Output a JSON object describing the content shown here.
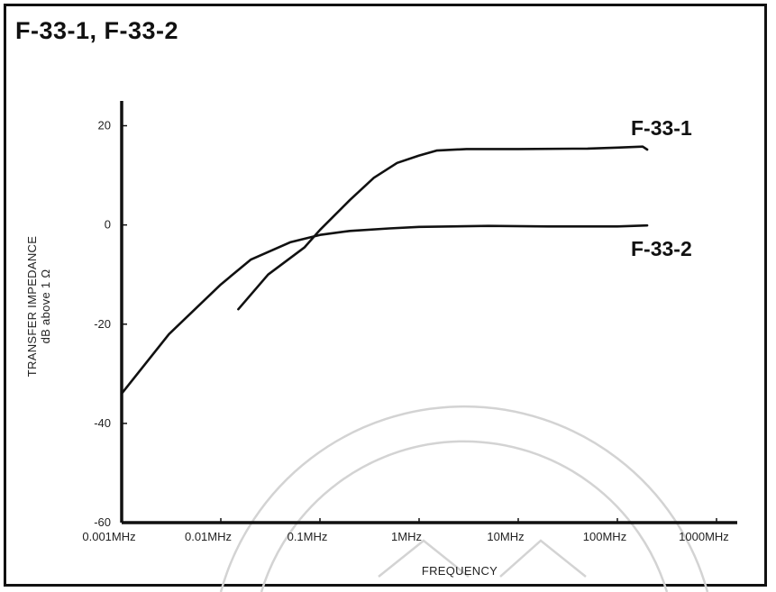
{
  "title": "F-33-1, F-33-2",
  "chart_data": {
    "type": "line",
    "title": "F-33-1, F-33-2",
    "xlabel": "FREQUENCY",
    "ylabel": [
      "TRANSFER IMPEDANCE",
      "dB above 1 Ω"
    ],
    "x_scale": "log",
    "x_unit": "MHz",
    "xlim": [
      0.001,
      1000
    ],
    "ylim": [
      -60,
      25
    ],
    "x_ticks": [
      {
        "value": 0.001,
        "label": "0.001MHz"
      },
      {
        "value": 0.01,
        "label": "0.01MHz"
      },
      {
        "value": 0.1,
        "label": "0.1MHz"
      },
      {
        "value": 1,
        "label": "1MHz"
      },
      {
        "value": 10,
        "label": "10MHz"
      },
      {
        "value": 100,
        "label": "100MHz"
      },
      {
        "value": 1000,
        "label": "1000MHz"
      }
    ],
    "y_ticks": [
      {
        "value": 20,
        "label": "20"
      },
      {
        "value": 0,
        "label": "0"
      },
      {
        "value": -20,
        "label": "-20"
      },
      {
        "value": -40,
        "label": "-40"
      },
      {
        "value": -60,
        "label": "-60"
      }
    ],
    "grid": false,
    "series": [
      {
        "name": "F-33-1",
        "color": "#111111",
        "points": [
          [
            0.015,
            -17
          ],
          [
            0.03,
            -10
          ],
          [
            0.07,
            -4.5
          ],
          [
            0.1,
            -1
          ],
          [
            0.2,
            5
          ],
          [
            0.35,
            9.5
          ],
          [
            0.6,
            12.5
          ],
          [
            1,
            14
          ],
          [
            1.5,
            15
          ],
          [
            3,
            15.3
          ],
          [
            10,
            15.3
          ],
          [
            50,
            15.4
          ],
          [
            100,
            15.6
          ],
          [
            180,
            15.8
          ],
          [
            200,
            15.2
          ]
        ]
      },
      {
        "name": "F-33-2",
        "color": "#111111",
        "points": [
          [
            0.001,
            -34
          ],
          [
            0.003,
            -22
          ],
          [
            0.01,
            -12
          ],
          [
            0.02,
            -7
          ],
          [
            0.05,
            -3.5
          ],
          [
            0.1,
            -2
          ],
          [
            0.2,
            -1.2
          ],
          [
            0.5,
            -0.7
          ],
          [
            1,
            -0.4
          ],
          [
            5,
            -0.2
          ],
          [
            20,
            -0.3
          ],
          [
            100,
            -0.3
          ],
          [
            200,
            -0.1
          ]
        ]
      }
    ]
  }
}
